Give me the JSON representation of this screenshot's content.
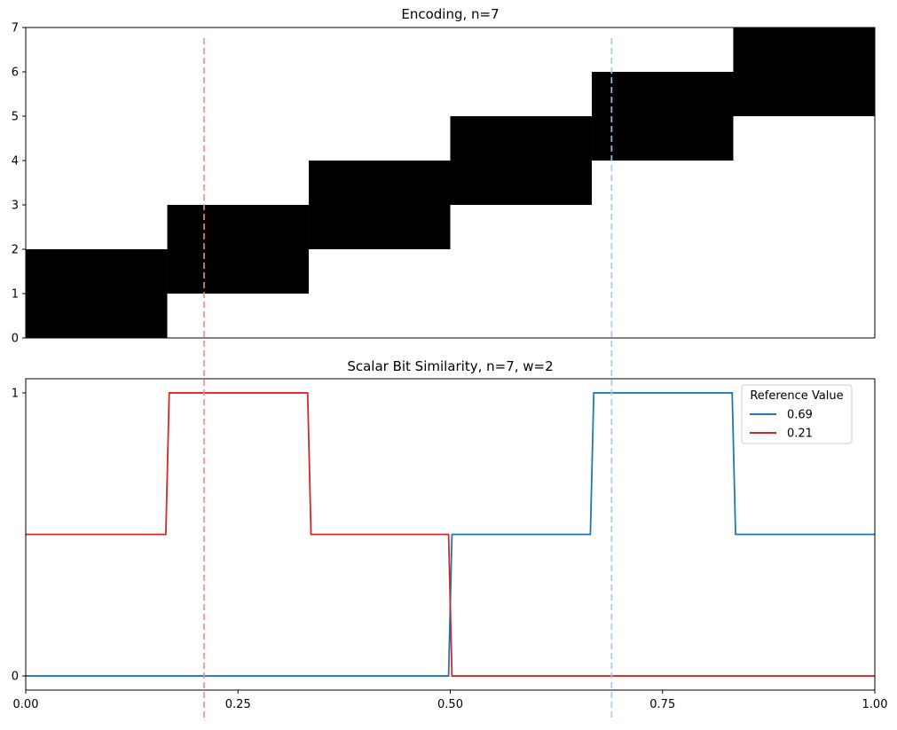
{
  "chart_data": [
    {
      "type": "heatmap",
      "title": "Encoding, n=7",
      "xlabel": "",
      "ylabel": "",
      "xlim": [
        0,
        1
      ],
      "ylim": [
        0,
        7
      ],
      "yticks": [
        "0",
        "1",
        "2",
        "3",
        "4",
        "5",
        "6",
        "7"
      ],
      "x_axis_visible": false,
      "grid": false,
      "active_color": "#000000",
      "inactive_color": "#ffffff",
      "blocks": [
        {
          "x0": 0.0,
          "x1": 0.1667,
          "y0": 0,
          "y1": 2
        },
        {
          "x0": 0.1667,
          "x1": 0.3333,
          "y0": 1,
          "y1": 3
        },
        {
          "x0": 0.3333,
          "x1": 0.5,
          "y0": 2,
          "y1": 4
        },
        {
          "x0": 0.5,
          "x1": 0.6667,
          "y0": 3,
          "y1": 5
        },
        {
          "x0": 0.6667,
          "x1": 0.8333,
          "y0": 4,
          "y1": 6
        },
        {
          "x0": 0.8333,
          "x1": 1.0,
          "y0": 5,
          "y1": 7
        }
      ]
    },
    {
      "type": "line",
      "title": "Scalar Bit Similarity, n=7, w=2",
      "xlabel": "",
      "ylabel": "",
      "xlim": [
        0,
        1
      ],
      "ylim": [
        -0.05,
        1.05
      ],
      "xticks": [
        {
          "value": 0.0,
          "label": "0.00"
        },
        {
          "value": 0.25,
          "label": "0.25"
        },
        {
          "value": 0.5,
          "label": "0.50"
        },
        {
          "value": 0.75,
          "label": "0.75"
        },
        {
          "value": 1.0,
          "label": "1.00"
        }
      ],
      "yticks": [
        {
          "value": 0,
          "label": "0"
        },
        {
          "value": 1,
          "label": "1"
        }
      ],
      "grid": false,
      "legend": {
        "title": "Reference Value",
        "position": "top-right"
      },
      "series": [
        {
          "name": "0.69",
          "color": "#1f77b4",
          "points": [
            [
              0,
              0
            ],
            [
              0.498,
              0
            ],
            [
              0.502,
              0.5
            ],
            [
              0.665,
              0.5
            ],
            [
              0.669,
              1
            ],
            [
              0.832,
              1
            ],
            [
              0.836,
              0.5
            ],
            [
              1.0,
              0.5
            ]
          ]
        },
        {
          "name": "0.21",
          "color": "#d62728",
          "points": [
            [
              0,
              0.5
            ],
            [
              0.165,
              0.5
            ],
            [
              0.169,
              1
            ],
            [
              0.332,
              1
            ],
            [
              0.336,
              0.5
            ],
            [
              0.498,
              0.5
            ],
            [
              0.502,
              0
            ],
            [
              1.0,
              0
            ]
          ]
        }
      ]
    }
  ],
  "reference_lines": [
    {
      "value": 0.21,
      "color": "#f28b82",
      "style": "dashed"
    },
    {
      "value": 0.69,
      "color": "#a8c8f0",
      "style": "dashed"
    }
  ]
}
